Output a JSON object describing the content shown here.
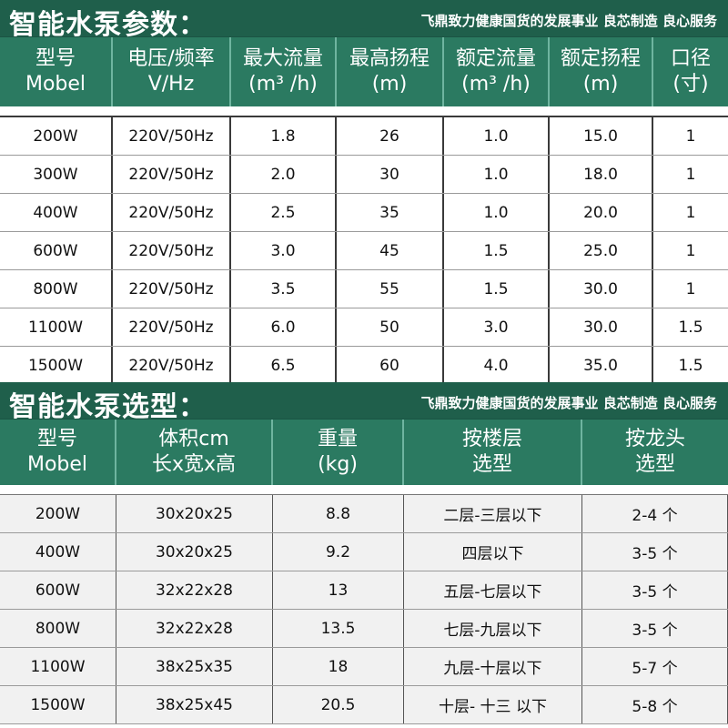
{
  "table1": {
    "title": "智能水泵参数：",
    "slogan": "飞鼎致力健康国货的发展事业  良芯制造 良心服务",
    "headers": [
      [
        "型号",
        "Mobel"
      ],
      [
        "电压/频率",
        "V/Hz"
      ],
      [
        "最大流量",
        "(m³ /h)"
      ],
      [
        "最高扬程",
        "(m)"
      ],
      [
        "额定流量",
        "(m³ /h)"
      ],
      [
        "额定扬程",
        "(m)"
      ],
      [
        "口径",
        "(寸)"
      ]
    ],
    "rows": [
      [
        "200W",
        "220V/50Hz",
        "1.8",
        "26",
        "1.0",
        "15.0",
        "1"
      ],
      [
        "300W",
        "220V/50Hz",
        "2.0",
        "30",
        "1.0",
        "18.0",
        "1"
      ],
      [
        "400W",
        "220V/50Hz",
        "2.5",
        "35",
        "1.0",
        "20.0",
        "1"
      ],
      [
        "600W",
        "220V/50Hz",
        "3.0",
        "45",
        "1.5",
        "25.0",
        "1"
      ],
      [
        "800W",
        "220V/50Hz",
        "3.5",
        "55",
        "1.5",
        "30.0",
        "1"
      ],
      [
        "1100W",
        "220V/50Hz",
        "6.0",
        "50",
        "3.0",
        "30.0",
        "1.5"
      ],
      [
        "1500W",
        "220V/50Hz",
        "6.5",
        "60",
        "4.0",
        "35.0",
        "1.5"
      ]
    ]
  },
  "table2": {
    "title": "智能水泵选型：",
    "slogan": "飞鼎致力健康国货的发展事业  良芯制造 良心服务",
    "headers": [
      [
        "型号",
        "Mobel"
      ],
      [
        "体积cm",
        "长x宽x高"
      ],
      [
        "重量",
        "(kg)"
      ],
      [
        "按楼层",
        "选型"
      ],
      [
        "按龙头",
        "选型"
      ]
    ],
    "rows": [
      [
        "200W",
        "30x20x25",
        "8.8",
        "二层-三层以下",
        "2-4 个"
      ],
      [
        "400W",
        "30x20x25",
        "9.2",
        "四层以下",
        "3-5 个"
      ],
      [
        "600W",
        "32x22x28",
        "13",
        "五层-七层以下",
        "3-5 个"
      ],
      [
        "800W",
        "32x22x28",
        "13.5",
        "七层-九层以下",
        "3-5 个"
      ],
      [
        "1100W",
        "38x25x35",
        "18",
        "九层-十层以下",
        "5-7 个"
      ],
      [
        "1500W",
        "38x25x45",
        "20.5",
        "十层- 十三 以下",
        "5-8 个"
      ]
    ]
  }
}
